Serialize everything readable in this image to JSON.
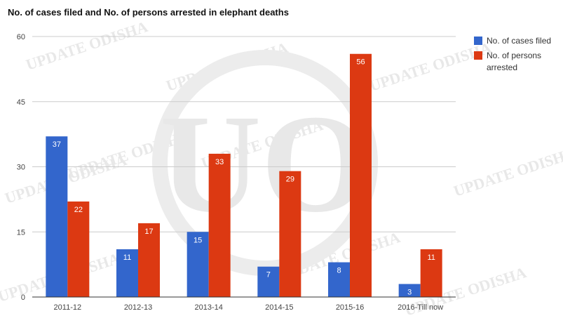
{
  "title": "No. of cases filed and No. of persons arrested in elephant deaths",
  "watermark": {
    "text": "UPDATE ODISHA",
    "logo_letters": "UO"
  },
  "colors": {
    "series_cases": "#3366cc",
    "series_arrested": "#dc3912",
    "grid": "#cccccc",
    "watermark": "#e6e6e6"
  },
  "chart_data": {
    "type": "bar",
    "title": "No. of cases filed and No. of persons arrested in elephant deaths",
    "categories": [
      "2011-12",
      "2012-13",
      "2013-14",
      "2014-15",
      "2015-16",
      "2016-Till now"
    ],
    "series": [
      {
        "name": "No. of cases filed",
        "values": [
          37,
          11,
          15,
          7,
          8,
          3
        ]
      },
      {
        "name": "No. of persons arrested",
        "values": [
          22,
          17,
          33,
          29,
          56,
          11
        ]
      }
    ],
    "ylim": [
      0,
      60
    ],
    "yticks": [
      0,
      15,
      30,
      45,
      60
    ],
    "grid": true,
    "legend": "right",
    "data_labels": true
  }
}
